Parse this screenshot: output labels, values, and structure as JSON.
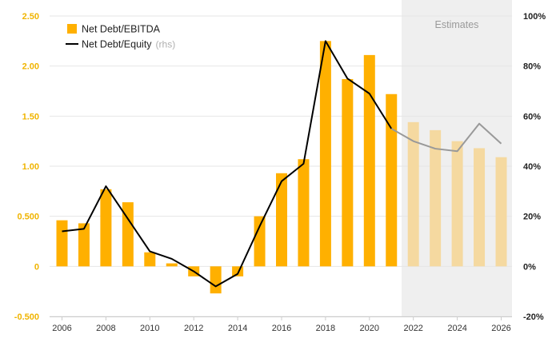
{
  "chart_data": {
    "type": "bar",
    "x": [
      2006,
      2007,
      2008,
      2009,
      2010,
      2011,
      2012,
      2013,
      2014,
      2015,
      2016,
      2017,
      2018,
      2019,
      2020,
      2021,
      2022,
      2023,
      2024,
      2025,
      2026
    ],
    "x_tick_labels": [
      "2006",
      "2008",
      "2010",
      "2012",
      "2014",
      "2016",
      "2018",
      "2020",
      "2022",
      "2024",
      "2026"
    ],
    "series": [
      {
        "name": "Net Debt/EBITDA",
        "type": "bar",
        "axis": "left",
        "color": "#FFB000",
        "estimate_color": "#F5D9A0",
        "values": [
          0.46,
          0.43,
          0.77,
          0.64,
          0.14,
          0.03,
          -0.1,
          -0.27,
          -0.1,
          0.5,
          0.93,
          1.07,
          2.25,
          1.87,
          2.11,
          1.72,
          1.44,
          1.36,
          1.25,
          1.18,
          1.09
        ]
      },
      {
        "name": "Net Debt/Equity",
        "name_note": "(rhs)",
        "type": "line",
        "axis": "right",
        "color": "#000000",
        "estimate_color": "#999999",
        "values": [
          14,
          15,
          32,
          19,
          6,
          3,
          -2,
          -8,
          -3,
          16,
          34,
          41,
          90,
          75,
          69,
          55,
          50,
          47,
          46,
          57,
          49
        ]
      }
    ],
    "estimate_start": 2021,
    "estimate_first_bar": 2022,
    "estimates_label": "Estimates",
    "y_left": {
      "ticks": [
        -0.5,
        0,
        0.5,
        1.0,
        1.5,
        2.0,
        2.5
      ],
      "tick_labels": [
        "-0.500",
        "0",
        "0.500",
        "1.00",
        "1.50",
        "2.00",
        "2.50"
      ],
      "range": [
        -0.5,
        2.5
      ],
      "color": "#F0B400"
    },
    "y_right": {
      "ticks": [
        -20,
        0,
        20,
        40,
        60,
        80,
        100
      ],
      "tick_labels": [
        "-20%",
        "0%",
        "20%",
        "40%",
        "60%",
        "80%",
        "100%"
      ],
      "range": [
        -20,
        100
      ]
    },
    "grid": true,
    "legend_position": "top-left",
    "estimates_shade_color": "#EFEFEF"
  }
}
